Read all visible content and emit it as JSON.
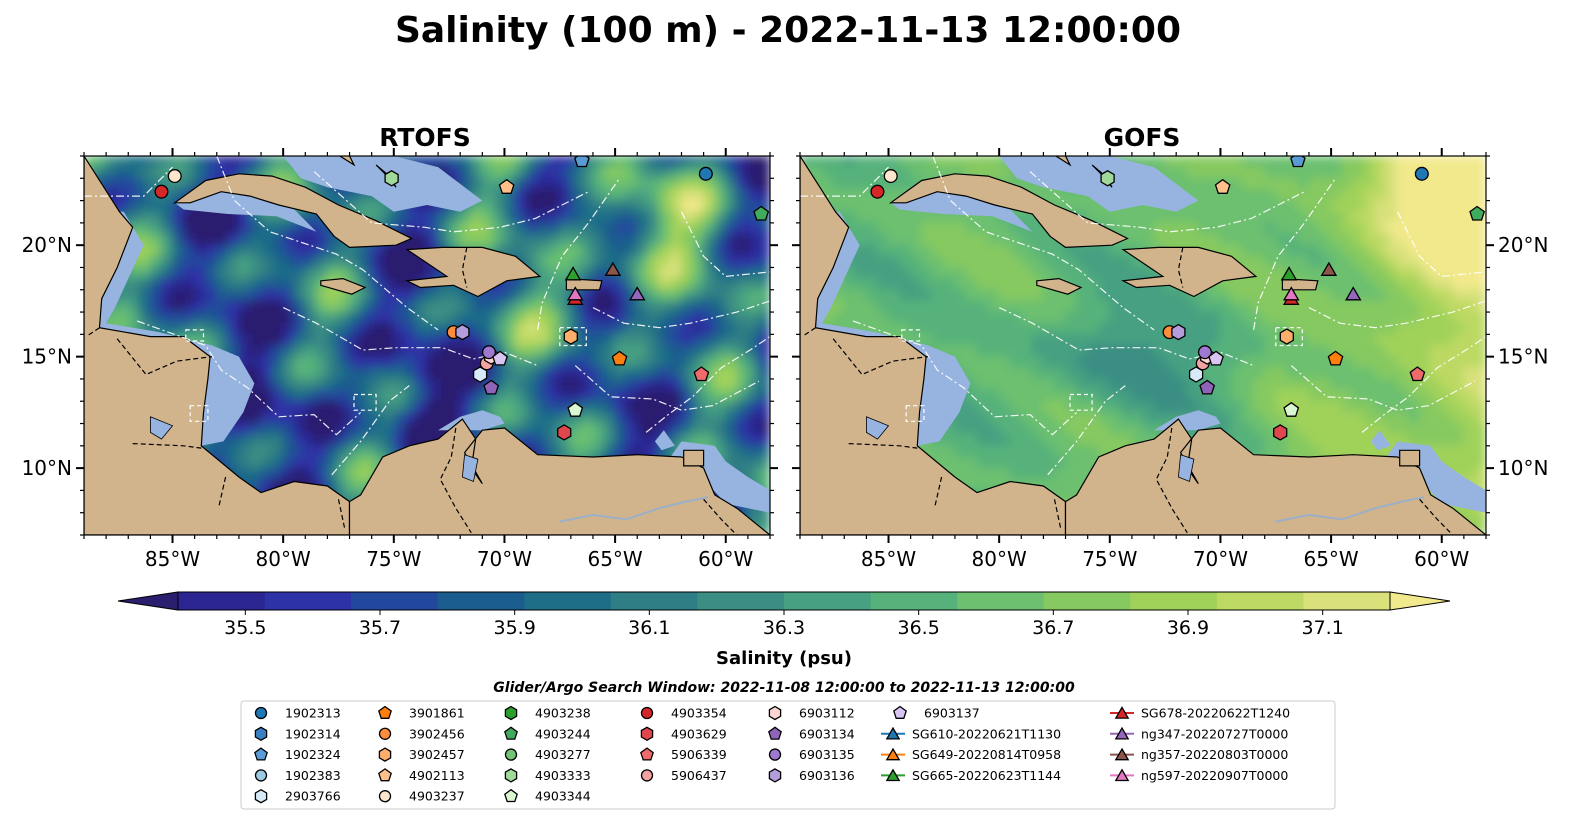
{
  "title": "Salinity (100 m) - 2022-11-13 12:00:00",
  "panels": [
    {
      "title": "RTOFS",
      "tone": "low"
    },
    {
      "title": "GOFS",
      "tone": "high"
    }
  ],
  "map_extent": {
    "lon": [
      -89,
      -58
    ],
    "lat": [
      7,
      24
    ]
  },
  "lon_ticks": [
    {
      "value": -85,
      "label": "85°W"
    },
    {
      "value": -80,
      "label": "80°W"
    },
    {
      "value": -75,
      "label": "75°W"
    },
    {
      "value": -70,
      "label": "70°W"
    },
    {
      "value": -65,
      "label": "65°W"
    },
    {
      "value": -60,
      "label": "60°W"
    }
  ],
  "lat_ticks": [
    {
      "value": 20,
      "label": "20°N"
    },
    {
      "value": 15,
      "label": "15°N"
    },
    {
      "value": 10,
      "label": "10°N"
    }
  ],
  "colorbar": {
    "label": "Salinity (psu)",
    "min": 35.4,
    "max": 37.2,
    "ticks": [
      "35.5",
      "35.7",
      "35.9",
      "36.1",
      "36.3",
      "36.5",
      "36.7",
      "36.9",
      "37.1"
    ],
    "colors": [
      "#2a1e6e",
      "#2b2592",
      "#2d33a6",
      "#22489e",
      "#1b5c8f",
      "#1e6e88",
      "#2f7e85",
      "#3b8e83",
      "#47a081",
      "#56b27a",
      "#6cc06f",
      "#86c961",
      "#a0d25a",
      "#bcd964",
      "#d8e17a",
      "#f2e98c"
    ]
  },
  "colors": {
    "land": "#d2b48c",
    "shallow": "#97b4e0",
    "deep": "#2a1e6e",
    "black": "#000000"
  },
  "search_window": "Glider/Argo Search Window: 2022-11-08 12:00:00 to 2022-11-13 12:00:00",
  "legend": [
    {
      "label": "1902313",
      "marker": "circle",
      "color": "#1f77b4"
    },
    {
      "label": "1902314",
      "marker": "hexagon",
      "color": "#3a7fc0"
    },
    {
      "label": "1902324",
      "marker": "pentagon",
      "color": "#5b9bd5"
    },
    {
      "label": "1902383",
      "marker": "circle",
      "color": "#9ecae1"
    },
    {
      "label": "2903766",
      "marker": "hexagon",
      "color": "#d6eaf8"
    },
    {
      "label": "3901861",
      "marker": "pentagon",
      "color": "#ff7f0e"
    },
    {
      "label": "3902456",
      "marker": "circle",
      "color": "#fd8d3c"
    },
    {
      "label": "3902457",
      "marker": "hexagon",
      "color": "#fdae6b"
    },
    {
      "label": "4902113",
      "marker": "pentagon",
      "color": "#fdc08b"
    },
    {
      "label": "4903237",
      "marker": "circle",
      "color": "#fee6ce"
    },
    {
      "label": "4903238",
      "marker": "hexagon",
      "color": "#2ca02c"
    },
    {
      "label": "4903244",
      "marker": "pentagon",
      "color": "#41ab5d"
    },
    {
      "label": "4903277",
      "marker": "circle",
      "color": "#74c476"
    },
    {
      "label": "4903333",
      "marker": "hexagon",
      "color": "#a1d99b"
    },
    {
      "label": "4903344",
      "marker": "pentagon",
      "color": "#d9f7d0"
    },
    {
      "label": "4903354",
      "marker": "circle",
      "color": "#d62728"
    },
    {
      "label": "4903629",
      "marker": "hexagon",
      "color": "#e0474c"
    },
    {
      "label": "5906339",
      "marker": "pentagon",
      "color": "#ef6b6b"
    },
    {
      "label": "5906437",
      "marker": "circle",
      "color": "#f4a3a3"
    },
    {
      "label": "6903112",
      "marker": "hexagon",
      "color": "#fcd5d5"
    },
    {
      "label": "6903134",
      "marker": "pentagon",
      "color": "#8e63b8"
    },
    {
      "label": "6903135",
      "marker": "circle",
      "color": "#9e79cf"
    },
    {
      "label": "6903136",
      "marker": "hexagon",
      "color": "#b39ddb"
    },
    {
      "label": "6903137",
      "marker": "pentagon",
      "color": "#d9c5f2"
    },
    {
      "label": "SG610-20220621T1130",
      "marker": "triangle",
      "color": "#1f77b4"
    },
    {
      "label": "SG649-20220814T0958",
      "marker": "triangle",
      "color": "#ff7f0e"
    },
    {
      "label": "SG665-20220623T1144",
      "marker": "triangle",
      "color": "#2ca02c"
    },
    {
      "label": "SG678-20220622T1240",
      "marker": "triangle",
      "color": "#d62728"
    },
    {
      "label": "ng347-20220727T0000",
      "marker": "triangle",
      "color": "#9467bd"
    },
    {
      "label": "ng357-20220803T0000",
      "marker": "triangle",
      "color": "#8c564b"
    },
    {
      "label": "ng597-20220907T0000",
      "marker": "triangle",
      "color": "#e377c2"
    }
  ],
  "chart_data": {
    "type": "scatter",
    "title": "Salinity (100 m) - 2022-11-13 12:00:00",
    "xlabel": "",
    "ylabel": "",
    "xlim": [
      -89,
      -58
    ],
    "ylim": [
      7,
      24
    ],
    "series": [
      {
        "name": "1902313",
        "x": [
          -60.9
        ],
        "y": [
          23.2
        ]
      },
      {
        "name": "1902324",
        "x": [
          -66.5
        ],
        "y": [
          23.8
        ]
      },
      {
        "name": "3901861",
        "x": [
          -64.8
        ],
        "y": [
          14.9
        ]
      },
      {
        "name": "3902456",
        "x": [
          -72.3
        ],
        "y": [
          16.1
        ]
      },
      {
        "name": "3902457",
        "x": [
          -67.0
        ],
        "y": [
          15.9
        ]
      },
      {
        "name": "4902113",
        "x": [
          -69.9
        ],
        "y": [
          22.6
        ]
      },
      {
        "name": "4903237",
        "x": [
          -84.9
        ],
        "y": [
          23.1
        ]
      },
      {
        "name": "4903244",
        "x": [
          -58.4
        ],
        "y": [
          21.4
        ]
      },
      {
        "name": "4903333",
        "x": [
          -75.1
        ],
        "y": [
          23.0
        ]
      },
      {
        "name": "4903344",
        "x": [
          -66.8
        ],
        "y": [
          12.6
        ]
      },
      {
        "name": "4903354",
        "x": [
          -85.5
        ],
        "y": [
          22.4
        ]
      },
      {
        "name": "5906339",
        "x": [
          -61.1
        ],
        "y": [
          14.2
        ]
      },
      {
        "name": "5906437",
        "x": [
          -70.8
        ],
        "y": [
          14.7
        ]
      },
      {
        "name": "4903629",
        "x": [
          -67.3
        ],
        "y": [
          11.6
        ]
      },
      {
        "name": "6903112",
        "x": [
          -70.6
        ],
        "y": [
          15.0
        ]
      },
      {
        "name": "6903134",
        "x": [
          -70.6
        ],
        "y": [
          13.6
        ]
      },
      {
        "name": "6903135",
        "x": [
          -70.7
        ],
        "y": [
          15.2
        ]
      },
      {
        "name": "6903136",
        "x": [
          -71.9
        ],
        "y": [
          16.1
        ]
      },
      {
        "name": "6903137",
        "x": [
          -70.2
        ],
        "y": [
          14.9
        ]
      },
      {
        "name": "2903766",
        "x": [
          -71.1
        ],
        "y": [
          14.2
        ]
      },
      {
        "name": "SG665-20220623T1144",
        "x": [
          -66.9
        ],
        "y": [
          18.7
        ]
      },
      {
        "name": "SG678-20220622T1240",
        "x": [
          -66.8
        ],
        "y": [
          17.6
        ]
      },
      {
        "name": "ng347-20220727T0000",
        "x": [
          -64.0
        ],
        "y": [
          17.8
        ]
      },
      {
        "name": "ng357-20220803T0000",
        "x": [
          -65.1
        ],
        "y": [
          18.9
        ]
      },
      {
        "name": "ng597-20220907T0000",
        "x": [
          -66.8
        ],
        "y": [
          17.8
        ]
      }
    ]
  }
}
